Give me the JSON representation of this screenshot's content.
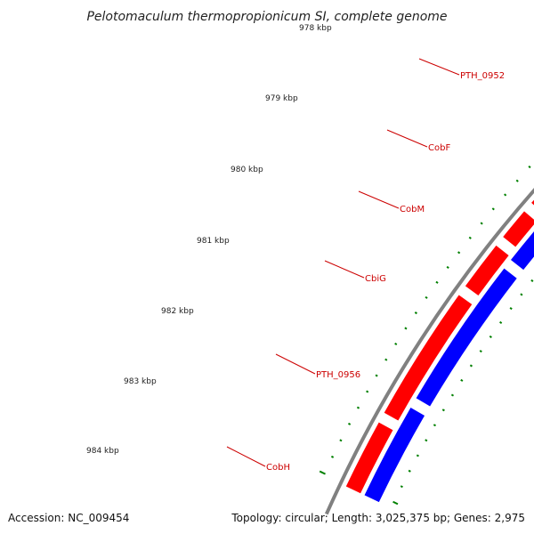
{
  "title": "Pelotomaculum thermopropionicum SI, complete genome",
  "footer": {
    "accession": "Accession: NC_009454",
    "topology": "Topology: circular; Length: 3,025,375 bp; Genes: 2,975"
  },
  "colors": {
    "forward_strand": "#ff0000",
    "reverse_strand": "#0000ff",
    "backbone": "#808080",
    "ticks": "#008000",
    "labels": "#cc0000"
  },
  "ruler": {
    "unit": "kbp",
    "labels": [
      "978 kbp",
      "979 kbp",
      "980 kbp",
      "981 kbp",
      "982 kbp",
      "983 kbp",
      "984 kbp"
    ]
  },
  "genes": [
    {
      "name": "PTH_0952"
    },
    {
      "name": "CobF"
    },
    {
      "name": "CobM"
    },
    {
      "name": "CbiG"
    },
    {
      "name": "PTH_0956"
    },
    {
      "name": "CobH"
    }
  ]
}
